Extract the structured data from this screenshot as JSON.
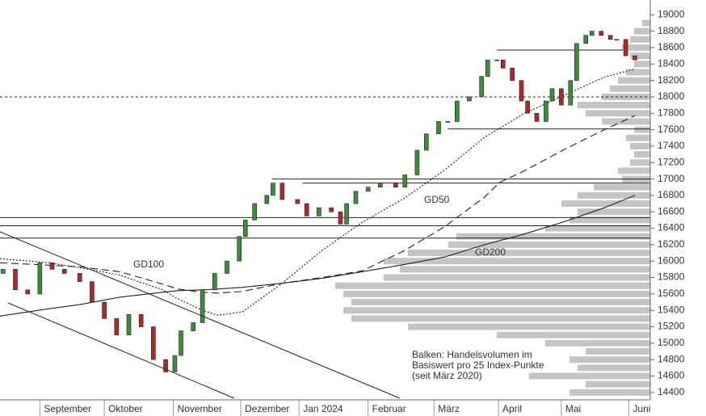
{
  "chart_data": {
    "type": "candlestick",
    "xlim": [
      0,
      212
    ],
    "ylim": [
      14310,
      19180
    ],
    "xticks": [
      {
        "value": 13,
        "label": "September"
      },
      {
        "value": 34,
        "label": "Oktober"
      },
      {
        "value": 56.5,
        "label": "November"
      },
      {
        "value": 78.5,
        "label": "Dezember"
      },
      {
        "value": 97.5,
        "label": "Jan 2024"
      },
      {
        "value": 120,
        "label": "Februar"
      },
      {
        "value": 141.5,
        "label": "März"
      },
      {
        "value": 162.5,
        "label": "April"
      },
      {
        "value": 183,
        "label": "Mai"
      },
      {
        "value": 205,
        "label": "Juni"
      }
    ],
    "yticks": [
      14400,
      14600,
      14800,
      15000,
      15200,
      15400,
      15600,
      15800,
      16000,
      16200,
      16400,
      16600,
      16800,
      17000,
      17200,
      17400,
      17600,
      17800,
      18000,
      18200,
      18400,
      18600,
      18800,
      19000
    ],
    "up_color": "#3c8c3c",
    "down_color": "#b0282a",
    "candles": {
      "x": [
        1,
        5,
        9,
        13,
        17,
        21,
        26,
        30,
        34,
        38,
        42,
        46,
        50,
        54,
        57,
        59,
        63,
        66,
        70,
        74,
        78,
        80,
        83,
        87,
        89,
        92,
        97,
        100,
        104,
        108,
        111,
        113,
        116,
        120,
        124,
        129,
        132,
        136,
        139,
        143,
        146,
        149,
        153,
        157,
        159,
        162,
        164,
        167,
        170,
        172,
        175,
        178,
        180,
        183,
        186,
        188,
        191,
        193,
        196,
        199,
        201,
        204,
        207
      ],
      "open": [
        15850,
        15900,
        15650,
        15600,
        15980,
        15900,
        15850,
        15750,
        15500,
        15300,
        15100,
        15350,
        15200,
        14800,
        14650,
        14850,
        15150,
        15250,
        15650,
        15850,
        16000,
        16300,
        16500,
        16700,
        16800,
        16950,
        16750,
        16700,
        16550,
        16650,
        16600,
        16450,
        16700,
        16850,
        16900,
        16950,
        16900,
        17050,
        17350,
        17550,
        17700,
        17700,
        17950,
        18000,
        18250,
        18450,
        18450,
        18350,
        18200,
        17950,
        17800,
        17700,
        17950,
        18100,
        17900,
        18200,
        18650,
        18750,
        18800,
        18750,
        18700,
        18700,
        18500
      ],
      "close": [
        15900,
        15650,
        15600,
        15980,
        15900,
        15850,
        15750,
        15500,
        15300,
        15100,
        15350,
        15200,
        14800,
        14650,
        14850,
        15150,
        15250,
        15650,
        15850,
        16000,
        16300,
        16500,
        16700,
        16800,
        16950,
        16750,
        16700,
        16550,
        16650,
        16600,
        16450,
        16700,
        16850,
        16900,
        16950,
        16900,
        17050,
        17350,
        17550,
        17700,
        17700,
        17950,
        18000,
        18250,
        18450,
        18450,
        18350,
        18200,
        17950,
        17800,
        17700,
        17950,
        18100,
        17900,
        18200,
        18650,
        18750,
        18800,
        18750,
        18700,
        18700,
        18500,
        18450
      ]
    },
    "x": [
      0,
      16,
      26,
      39,
      53,
      58,
      66,
      71,
      79,
      92,
      105,
      118,
      132,
      145,
      158,
      163,
      171,
      184,
      197,
      207
    ],
    "series": [
      {
        "name": "GD100",
        "color": "#222",
        "dash": "9 5",
        "values": [
          15980,
          15950,
          15930,
          15870,
          15720,
          15660,
          15620,
          15610,
          15630,
          15730,
          15800,
          15880,
          16130,
          16420,
          16780,
          16960,
          17100,
          17360,
          17600,
          17770
        ]
      },
      {
        "name": "GD50",
        "color": "#222",
        "dash": "2 2",
        "values": [
          16030,
          15980,
          15920,
          15830,
          15650,
          15540,
          15400,
          15340,
          15380,
          15730,
          16130,
          16470,
          16770,
          17110,
          17510,
          17620,
          17800,
          18020,
          18240,
          18340
        ]
      },
      {
        "name": "GD200",
        "color": "#222",
        "dash": "none",
        "values": [
          15330,
          15420,
          15470,
          15560,
          15620,
          15640,
          15650,
          15660,
          15680,
          15730,
          15790,
          15870,
          15960,
          16050,
          16200,
          16250,
          16330,
          16480,
          16650,
          16800
        ]
      }
    ],
    "levels": [
      {
        "value": 18000,
        "from": 0,
        "to": 212,
        "dash": "3 3"
      },
      {
        "value": 16530,
        "from": 0,
        "to": 212,
        "dash": "none"
      },
      {
        "value": 16430,
        "from": 0,
        "to": 212,
        "dash": "none"
      },
      {
        "value": 16280,
        "from": 0,
        "to": 212,
        "dash": "none"
      },
      {
        "value": 17000,
        "from": 88.7,
        "to": 212,
        "dash": "none"
      },
      {
        "value": 16950,
        "from": 98.7,
        "to": 212,
        "dash": "none"
      },
      {
        "value": 18570,
        "from": 162,
        "to": 203,
        "dash": "none"
      },
      {
        "value": 17610,
        "from": 146,
        "to": 212,
        "dash": "none"
      }
    ],
    "volume_profile": {
      "color": "#c4c4c4",
      "prices": [
        14400,
        14500,
        14600,
        14700,
        14800,
        14900,
        15000,
        15100,
        15200,
        15300,
        15400,
        15500,
        15600,
        15700,
        15800,
        15900,
        16000,
        16100,
        16200,
        16300,
        16400,
        16500,
        16600,
        16700,
        16800,
        16900,
        17000,
        17100,
        17200,
        17300,
        17400,
        17500,
        17600,
        17700,
        17800,
        17900,
        18000,
        18100,
        18200,
        18300,
        18400,
        18500,
        18600,
        18700,
        18800,
        18900
      ],
      "lengths": [
        100,
        80,
        150,
        90,
        100,
        80,
        130,
        190,
        300,
        370,
        380,
        370,
        380,
        390,
        330,
        310,
        330,
        300,
        250,
        240,
        130,
        100,
        90,
        110,
        90,
        70,
        35,
        40,
        25,
        20,
        25,
        30,
        20,
        60,
        80,
        90,
        60,
        50,
        40,
        30,
        20,
        25,
        35,
        25,
        20,
        10
      ]
    },
    "annotation": [
      "Balken: Handelsvolumen im",
      "Basiswert pro 25 Index-Punkte",
      "(seit März 2020)"
    ]
  }
}
